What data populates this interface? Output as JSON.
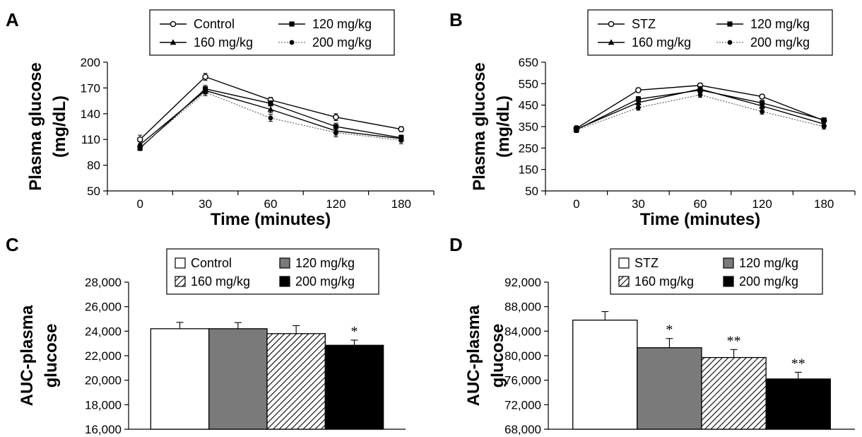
{
  "chart_data": [
    {
      "panel": "A",
      "type": "line",
      "xlabel": "Time (minutes)",
      "ylabel": [
        "Plasma glucose",
        "(mg/dL)"
      ],
      "categories": [
        "0",
        "30",
        "60",
        "120",
        "180"
      ],
      "ylim": [
        50,
        200
      ],
      "yticks": [
        50,
        80,
        110,
        140,
        170,
        200
      ],
      "legend_placement": "top",
      "series": [
        {
          "name": "Control",
          "marker": "open-circle",
          "line": "solid",
          "values": [
            110,
            183,
            156,
            136,
            122
          ],
          "errors": [
            5,
            4,
            3,
            4,
            3
          ]
        },
        {
          "name": "120 mg/kg",
          "marker": "square",
          "line": "solid",
          "values": [
            100,
            169,
            152,
            125,
            112
          ],
          "errors": [
            3,
            4,
            3,
            4,
            3
          ]
        },
        {
          "name": "160 mg/kg",
          "marker": "triangle",
          "line": "solid",
          "values": [
            104,
            167,
            145,
            120,
            111
          ],
          "errors": [
            3,
            4,
            4,
            5,
            4
          ]
        },
        {
          "name": "200 mg/kg",
          "marker": "dot",
          "line": "dotted",
          "values": [
            101,
            165,
            135,
            118,
            109
          ],
          "errors": [
            3,
            4,
            4,
            5,
            4
          ]
        }
      ]
    },
    {
      "panel": "B",
      "type": "line",
      "xlabel": "Time (minutes)",
      "ylabel": [
        "Plasma glucose",
        "(mg/dL)"
      ],
      "categories": [
        "0",
        "30",
        "60",
        "120",
        "180"
      ],
      "ylim": [
        50,
        650
      ],
      "yticks": [
        50,
        150,
        250,
        350,
        450,
        550,
        650
      ],
      "legend_placement": "top",
      "series": [
        {
          "name": "STZ",
          "marker": "open-circle",
          "line": "solid",
          "values": [
            342,
            520,
            542,
            490,
            378
          ],
          "errors": [
            12,
            10,
            10,
            10,
            10
          ]
        },
        {
          "name": "120 mg/kg",
          "marker": "square",
          "line": "solid",
          "values": [
            336,
            478,
            520,
            460,
            381
          ],
          "errors": [
            12,
            12,
            12,
            12,
            10
          ]
        },
        {
          "name": "160 mg/kg",
          "marker": "triangle",
          "line": "solid",
          "values": [
            338,
            462,
            525,
            446,
            362
          ],
          "errors": [
            12,
            12,
            12,
            12,
            10
          ]
        },
        {
          "name": "200 mg/kg",
          "marker": "dot",
          "line": "dotted",
          "values": [
            334,
            438,
            498,
            420,
            350
          ],
          "errors": [
            12,
            12,
            12,
            12,
            12
          ]
        }
      ]
    },
    {
      "panel": "C",
      "type": "bar",
      "ylabel": [
        "AUC-plasma",
        "glucose"
      ],
      "categories": [
        "Control",
        "120 mg/kg",
        "160 mg/kg",
        "200 mg/kg"
      ],
      "values": [
        24200,
        24200,
        23800,
        22850
      ],
      "errors": [
        520,
        500,
        650,
        420
      ],
      "significance": [
        "",
        "",
        "",
        "*"
      ],
      "fills": [
        "white",
        "gray",
        "hatched",
        "black"
      ],
      "ylim": [
        16000,
        28000
      ],
      "yticks": [
        "16,000",
        "18,000",
        "20,000",
        "22,000",
        "24,000",
        "26,000",
        "28,000"
      ],
      "legend_placement": "top"
    },
    {
      "panel": "D",
      "type": "bar",
      "ylabel": [
        "AUC-plasma",
        "glucose"
      ],
      "categories": [
        "STZ",
        "120 mg/kg",
        "160 mg/kg",
        "200 mg/kg"
      ],
      "values": [
        85800,
        81300,
        79700,
        76200
      ],
      "errors": [
        1400,
        1500,
        1300,
        1100
      ],
      "significance": [
        "",
        "*",
        "**",
        "**"
      ],
      "fills": [
        "white",
        "gray",
        "hatched",
        "black"
      ],
      "ylim": [
        68000,
        92000
      ],
      "yticks": [
        "68,000",
        "72,000",
        "76,000",
        "80,000",
        "84,000",
        "88,000",
        "92,000"
      ],
      "legend_placement": "top"
    }
  ],
  "colors": {
    "ink": "#000000",
    "bar_gray": "#7a7a7a",
    "bar_black": "#000000",
    "dotted_line": "#555555"
  }
}
